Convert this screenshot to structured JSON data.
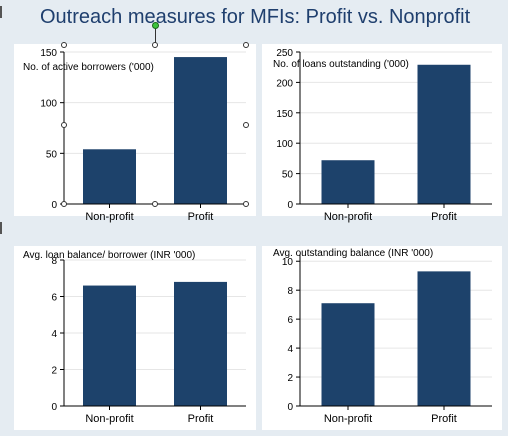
{
  "title": "Outreach measures for MFIs: Profit vs. Nonprofit",
  "colors": {
    "bar": "#1d426b",
    "title": "#1f3f6e",
    "background": "#e5ecf2"
  },
  "chart_data": [
    {
      "type": "bar",
      "title": "No. of active borrowers ('000)",
      "categories": [
        "Non-profit",
        "Profit"
      ],
      "values": [
        54,
        145
      ],
      "ylim": [
        0,
        150
      ],
      "yticks": [
        "0",
        "50",
        "100",
        "150"
      ],
      "grid": true
    },
    {
      "type": "bar",
      "title": "No. of loans outstanding ('000)",
      "categories": [
        "Non-profit",
        "Profit"
      ],
      "values": [
        72,
        229
      ],
      "ylim": [
        0,
        250
      ],
      "yticks": [
        "0",
        "50",
        "100",
        "150",
        "200",
        "250"
      ],
      "grid": true
    },
    {
      "type": "bar",
      "title": "Avg. loan balance/ borrower (INR '000)",
      "categories": [
        "Non-profit",
        "Profit"
      ],
      "values": [
        6.6,
        6.8
      ],
      "ylim": [
        0,
        8
      ],
      "yticks": [
        "0",
        "2",
        "4",
        "6",
        "8"
      ],
      "grid": true
    },
    {
      "type": "bar",
      "title": "Avg. outstanding balance (INR '000)",
      "categories": [
        "Non-profit",
        "Profit"
      ],
      "values": [
        7.1,
        9.3
      ],
      "ylim": [
        0,
        10.5
      ],
      "yticks": [
        "0",
        "2",
        "4",
        "6",
        "8",
        "10"
      ],
      "grid": true
    }
  ]
}
